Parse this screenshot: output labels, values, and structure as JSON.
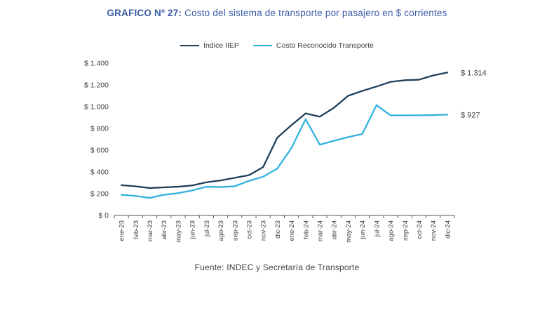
{
  "header": {
    "title_prefix": "GRAFICO Nº 27:",
    "title_rest": " Costo del sistema de transporte por pasajero en $ corrientes"
  },
  "footer": {
    "source_note": "Fuente: INDEC y Secretaría de Transporte"
  },
  "colors": {
    "title": "#3A5BA5",
    "axis_text": "#3f3f3f",
    "axis_line": "#595959",
    "iiep_line": "#1F3E58",
    "costo_line": "#31B2DE"
  },
  "chart_data": {
    "type": "line",
    "title": "GRAFICO Nº 27: Costo del sistema de transporte por pasajero en $ corrientes",
    "xlabel": "",
    "ylabel": "",
    "ylim": [
      0,
      1400
    ],
    "grid": false,
    "legend_position": "top",
    "categories": [
      "ene-23",
      "feb-23",
      "mar-23",
      "abr-23",
      "may-23",
      "jun-23",
      "jul-23",
      "ago-23",
      "sep-23",
      "oct-23",
      "nov-23",
      "dic-23",
      "ene-24",
      "feb-24",
      "mar-24",
      "abr-24",
      "may-24",
      "jun-24",
      "jul-24",
      "ago-24",
      "sep-24",
      "oct-24",
      "nov-24",
      "dic-24"
    ],
    "y_ticks": [
      0,
      200,
      400,
      600,
      800,
      1000,
      1200,
      1400
    ],
    "y_tick_labels": [
      "$ 0",
      "$ 200",
      "$ 400",
      "$ 600",
      "$ 800",
      "$ 1.000",
      "$ 1.200",
      "$ 1.400"
    ],
    "series": [
      {
        "name": "Índice IIEP",
        "color": "#1F3E58",
        "end_label": "$ 1.314",
        "values": [
          278,
          268,
          252,
          258,
          264,
          276,
          305,
          322,
          346,
          370,
          444,
          715,
          830,
          938,
          908,
          990,
          1100,
          1145,
          1185,
          1228,
          1243,
          1248,
          1287,
          1314
        ]
      },
      {
        "name": "Costo Reconocido Transporte",
        "color": "#31B2DE",
        "end_label": "$ 927",
        "values": [
          190,
          179,
          161,
          190,
          205,
          230,
          264,
          261,
          268,
          318,
          356,
          431,
          620,
          885,
          650,
          686,
          720,
          749,
          1014,
          920,
          920,
          921,
          923,
          927
        ]
      }
    ],
    "source_note": "Fuente: INDEC y Secretaría de Transporte"
  }
}
